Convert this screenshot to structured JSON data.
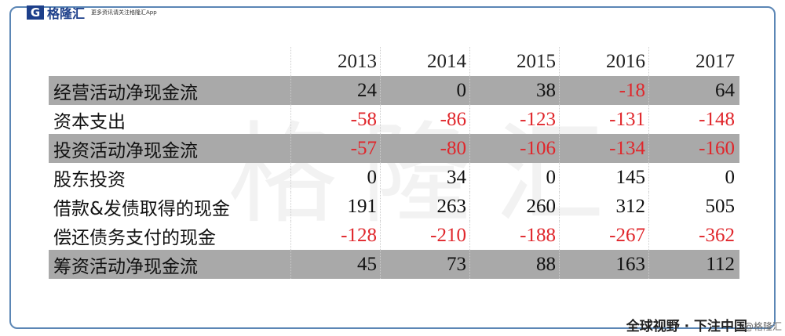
{
  "header": {
    "logo_mark": "G",
    "logo_text": "格隆汇",
    "slogan": "更多资讯请关注格隆汇App"
  },
  "watermark": "格隆汇",
  "table": {
    "columns": [
      "2013",
      "2014",
      "2015",
      "2016",
      "2017"
    ],
    "highlight_color": "#a9a9a9",
    "negative_color": "#e0262b",
    "rows": [
      {
        "label": "经营活动净现金流",
        "values": [
          24,
          0,
          38,
          -18,
          64
        ],
        "highlight": true
      },
      {
        "label": "资本支出",
        "values": [
          -58,
          -86,
          -123,
          -131,
          -148
        ],
        "highlight": false
      },
      {
        "label": "投资活动净现金流",
        "values": [
          -57,
          -80,
          -106,
          -134,
          -160
        ],
        "highlight": true
      },
      {
        "label": "股东投资",
        "values": [
          0,
          34,
          0,
          145,
          0
        ],
        "highlight": false
      },
      {
        "label": "借款&发债取得的现金",
        "values": [
          191,
          263,
          260,
          312,
          505
        ],
        "highlight": false
      },
      {
        "label": "偿还债务支付的现金",
        "values": [
          -128,
          -210,
          -188,
          -267,
          -362
        ],
        "highlight": false
      },
      {
        "label": "筹资活动净现金流",
        "values": [
          45,
          73,
          88,
          163,
          112
        ],
        "highlight": true
      }
    ]
  },
  "footer": {
    "slogan": "全球视野 · 下注中国",
    "source": "@格隆汇"
  }
}
